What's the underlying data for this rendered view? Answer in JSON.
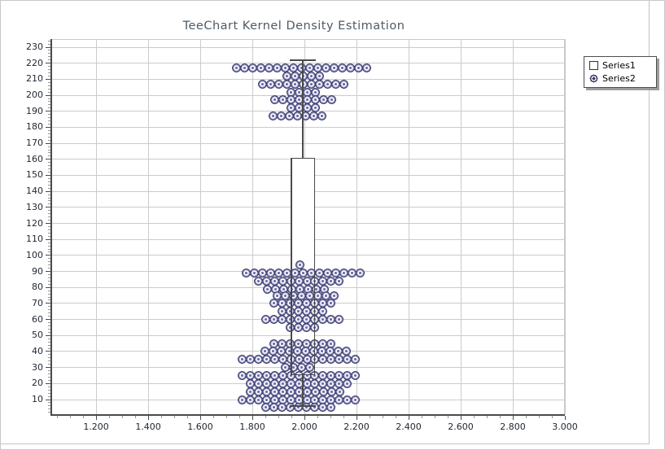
{
  "chart_data": {
    "type": "boxplot+scatter",
    "title": "TeeChart Kernel Density Estimation",
    "legend": {
      "position": "top-right",
      "entries": [
        {
          "label": "Series1",
          "marker": "square"
        },
        {
          "label": "Series2",
          "marker": "circled-dot"
        }
      ]
    },
    "axes": {
      "x": {
        "min": 1.031,
        "max": 3.0,
        "grid": true,
        "minor_step": 0.05,
        "major_ticks": [
          1.2,
          1.4,
          1.6,
          1.8,
          2.0,
          2.2,
          2.4,
          2.6,
          2.8,
          3.0
        ],
        "tick_labels": [
          "1.200",
          "1.400",
          "1.600",
          "1.800",
          "2.000",
          "2.200",
          "2.400",
          "2.600",
          "2.800",
          "3.000"
        ]
      },
      "y": {
        "min": 0.855,
        "max": 235.11,
        "grid": true,
        "minor_step": 2,
        "major_ticks": [
          10,
          20,
          30,
          40,
          50,
          60,
          70,
          80,
          90,
          100,
          110,
          120,
          130,
          140,
          150,
          160,
          170,
          180,
          190,
          200,
          210,
          220,
          230
        ],
        "tick_labels": [
          "10",
          "20",
          "30",
          "40",
          "50",
          "60",
          "70",
          "80",
          "90",
          "100",
          "110",
          "120",
          "130",
          "140",
          "150",
          "160",
          "170",
          "180",
          "190",
          "200",
          "210",
          "220",
          "230"
        ]
      }
    },
    "series": [
      {
        "name": "Series1",
        "type": "box",
        "center_x": 1.994,
        "box_width": 0.094,
        "whisker_low": 6,
        "q1": 25,
        "median": 60,
        "q3": 161,
        "whisker_high": 222
      },
      {
        "name": "Series2",
        "type": "scatter",
        "marker": "circled-dot",
        "point_dx": 0.03125,
        "rows": [
          {
            "y": 217,
            "n": 17,
            "cx": 1.988
          },
          {
            "y": 212,
            "n": 5,
            "cx": 1.994
          },
          {
            "y": 207,
            "n": 11,
            "cx": 1.994
          },
          {
            "y": 202,
            "n": 4,
            "cx": 1.994
          },
          {
            "y": 197,
            "n": 8,
            "cx": 1.994
          },
          {
            "y": 192,
            "n": 4,
            "cx": 1.994
          },
          {
            "y": 187,
            "n": 7,
            "cx": 1.972
          },
          {
            "y": 94,
            "n": 1,
            "cx": 1.984
          },
          {
            "y": 89,
            "n": 15,
            "cx": 1.994
          },
          {
            "y": 84,
            "n": 11,
            "cx": 1.978
          },
          {
            "y": 79,
            "n": 8,
            "cx": 1.966
          },
          {
            "y": 75,
            "n": 8,
            "cx": 2.006
          },
          {
            "y": 70,
            "n": 8,
            "cx": 1.991
          },
          {
            "y": 65,
            "n": 6,
            "cx": 1.991
          },
          {
            "y": 60,
            "n": 10,
            "cx": 1.991
          },
          {
            "y": 55,
            "n": 4,
            "cx": 1.991
          },
          {
            "y": 45,
            "n": 8,
            "cx": 1.991
          },
          {
            "y": 40,
            "n": 11,
            "cx": 2.006
          },
          {
            "y": 35,
            "n": 15,
            "cx": 1.978
          },
          {
            "y": 30,
            "n": 4,
            "cx": 1.972
          },
          {
            "y": 25,
            "n": 15,
            "cx": 1.978
          },
          {
            "y": 20,
            "n": 13,
            "cx": 1.978
          },
          {
            "y": 15,
            "n": 12,
            "cx": 1.963
          },
          {
            "y": 10,
            "n": 15,
            "cx": 1.978
          },
          {
            "y": 5,
            "n": 9,
            "cx": 1.975
          }
        ]
      }
    ],
    "colors": {
      "point_outline": "#3e3e6a",
      "point_fill": "#9c9cca",
      "box_line": "#4a4a4a",
      "grid": "#cbcbcb",
      "axis": "#4a4a4a",
      "title_text": "#4e5a66",
      "tick_text": "#1d2530",
      "legend_border": "#4e4e4e",
      "legend_shadow": "#9c9c9c",
      "background": "#ffffff"
    }
  }
}
